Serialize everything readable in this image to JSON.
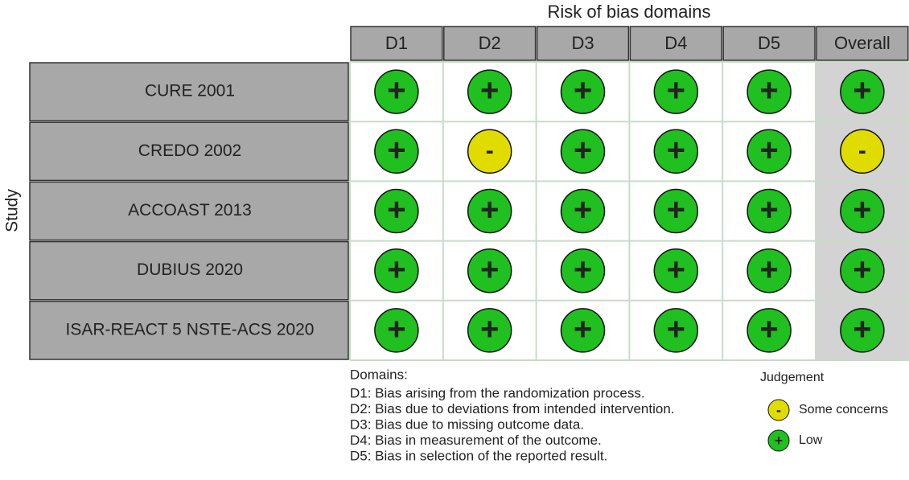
{
  "title": "Risk of bias domains",
  "y_label": "Study",
  "columns": [
    "D1",
    "D2",
    "D3",
    "D4",
    "D5",
    "Overall"
  ],
  "rows": [
    {
      "study": "CURE 2001",
      "cells": [
        "+",
        "+",
        "+",
        "+",
        "+",
        "+"
      ]
    },
    {
      "study": "CREDO 2002",
      "cells": [
        "+",
        "-",
        "+",
        "+",
        "+",
        "-"
      ]
    },
    {
      "study": "ACCOAST 2013",
      "cells": [
        "+",
        "+",
        "+",
        "+",
        "+",
        "+"
      ]
    },
    {
      "study": "DUBIUS 2020",
      "cells": [
        "+",
        "+",
        "+",
        "+",
        "+",
        "+"
      ]
    },
    {
      "study": "ISAR-REACT 5 NSTE-ACS 2020",
      "cells": [
        "+",
        "+",
        "+",
        "+",
        "+",
        "+"
      ]
    }
  ],
  "domains": {
    "heading": "Domains:",
    "items": [
      "D1: Bias arising from the randomization process.",
      "D2: Bias due to deviations from intended intervention.",
      "D3: Bias due to missing outcome data.",
      "D4: Bias in measurement of the outcome.",
      "D5: Bias in selection of the reported result."
    ]
  },
  "legend": {
    "title": "Judgement",
    "items": [
      {
        "symbol": "-",
        "label": "Some concerns",
        "color": "#e0dc00"
      },
      {
        "symbol": "+",
        "label": "Low",
        "color": "#1fc01f"
      }
    ]
  }
}
